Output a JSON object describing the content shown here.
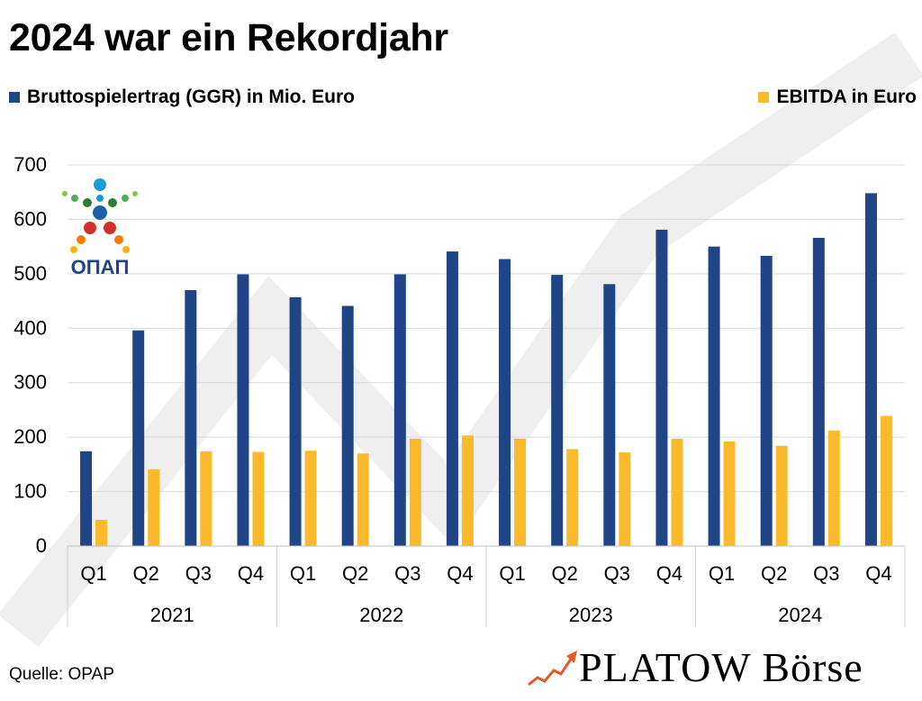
{
  "title": "2024 war ein Rekordjahr",
  "legend": {
    "ggr": "Bruttospielertrag (GGR) in Mio. Euro",
    "ebitda": "EBITDA in Euro"
  },
  "logo_text": "ΟΠΑΠ",
  "source": "Quelle: OPAP",
  "brand": "PLATOW Börse",
  "colors": {
    "ggr": "#1f4586",
    "ebitda": "#fbba2b",
    "grid": "#d9d9d9",
    "watermark": "#efefef",
    "brand_arrow": "#e05a2a"
  },
  "chart_data": {
    "type": "bar",
    "title": "2024 war ein Rekordjahr",
    "xlabel": "",
    "ylabel": "",
    "ylim": [
      0,
      700
    ],
    "yticks": [
      0,
      100,
      200,
      300,
      400,
      500,
      600,
      700
    ],
    "grid": true,
    "legend_position": "top",
    "categories": [
      "Q1",
      "Q2",
      "Q3",
      "Q4",
      "Q1",
      "Q2",
      "Q3",
      "Q4",
      "Q1",
      "Q2",
      "Q3",
      "Q4",
      "Q1",
      "Q2",
      "Q3",
      "Q4"
    ],
    "groups": [
      {
        "label": "2021",
        "start": 0,
        "count": 4
      },
      {
        "label": "2022",
        "start": 4,
        "count": 4
      },
      {
        "label": "2023",
        "start": 8,
        "count": 4
      },
      {
        "label": "2024",
        "start": 12,
        "count": 4
      }
    ],
    "series": [
      {
        "name": "Bruttospielertrag (GGR) in Mio. Euro",
        "values": [
          174,
          396,
          470,
          499,
          457,
          441,
          499,
          541,
          527,
          498,
          481,
          581,
          550,
          533,
          566,
          648
        ]
      },
      {
        "name": "EBITDA in Euro",
        "values": [
          48,
          141,
          174,
          173,
          175,
          170,
          197,
          203,
          197,
          178,
          172,
          197,
          192,
          184,
          212,
          239
        ]
      }
    ]
  }
}
